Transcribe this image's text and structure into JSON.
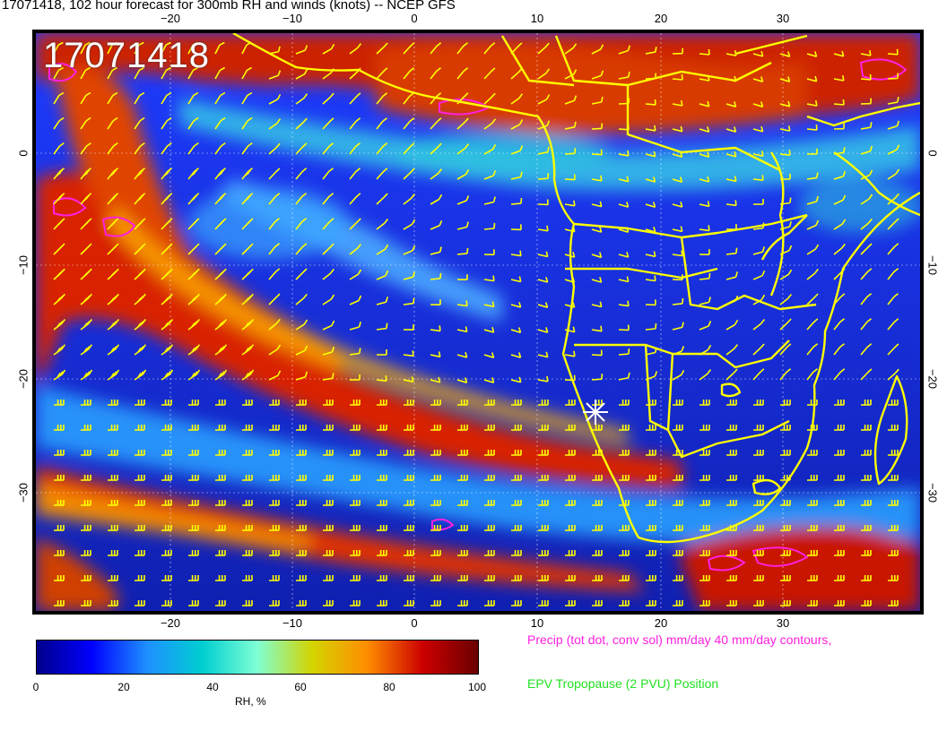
{
  "title": "17071418, 102 hour forecast for 300mb RH and winds (knots) -- NCEP GFS",
  "stamp": "17071418",
  "map": {
    "lon_ticks": [
      {
        "value": -20,
        "label": "−20"
      },
      {
        "value": -10,
        "label": "−10"
      },
      {
        "value": 0,
        "label": "0"
      },
      {
        "value": 10,
        "label": "10"
      },
      {
        "value": 20,
        "label": "20"
      },
      {
        "value": 30,
        "label": "30"
      }
    ],
    "lat_ticks": [
      {
        "value": 0,
        "label": "0"
      },
      {
        "value": -10,
        "label": "−10"
      },
      {
        "value": -20,
        "label": "−20"
      },
      {
        "value": -30,
        "label": "−30"
      }
    ],
    "marker": {
      "lon": 14.5,
      "lat": -22.5
    },
    "colors": {
      "coast": "#ffff00",
      "precip_contour": "#ff20e0",
      "wind_barb": "#ffff00",
      "grid": "#ffffff"
    }
  },
  "colorbar": {
    "label": "RH, %",
    "ticks": [
      "0",
      "20",
      "40",
      "60",
      "80",
      "100"
    ],
    "min": 0,
    "max": 100,
    "stops": [
      "#00008b",
      "#0000ff",
      "#1e90ff",
      "#00ced1",
      "#7fffd4",
      "#d4d400",
      "#ff8c00",
      "#cc0000",
      "#6b0000"
    ]
  },
  "legend": {
    "precip": "Precip (tot dot, conv sol) mm/day 40 mm/day contours,",
    "epv": "EPV Tropopause (2 PVU) Position"
  }
}
